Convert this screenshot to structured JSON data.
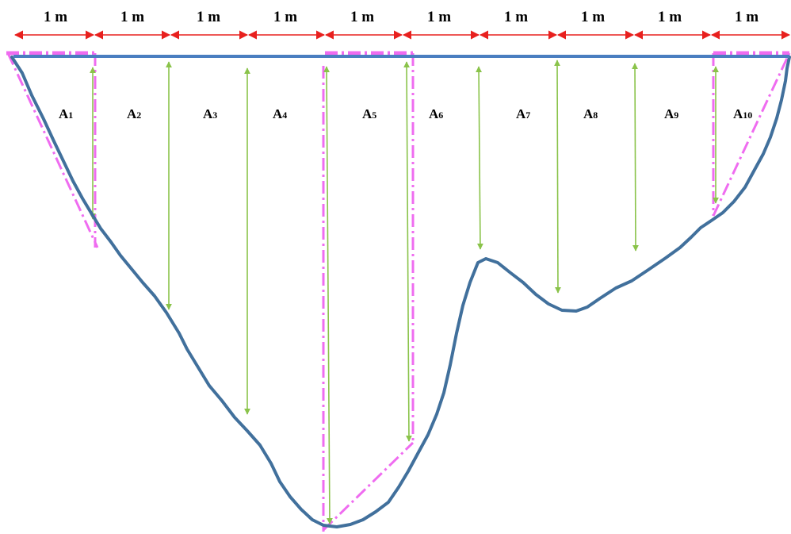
{
  "colors": {
    "profile": "#41709c",
    "waterline": "#4a7ec0",
    "dimension": "#e8201e",
    "depth": "#8ac34a",
    "approximation": "#ef6cf0"
  },
  "segments": [
    "1 m",
    "1 m",
    "1 m",
    "1 m",
    "1 m",
    "1 m",
    "1 m",
    "1 m",
    "1 m",
    "1 m"
  ],
  "areas": [
    {
      "letter": "A",
      "index": "1"
    },
    {
      "letter": "A",
      "index": "2"
    },
    {
      "letter": "A",
      "index": "3"
    },
    {
      "letter": "A",
      "index": "4"
    },
    {
      "letter": "A",
      "index": "5"
    },
    {
      "letter": "A",
      "index": "6"
    },
    {
      "letter": "A",
      "index": "7"
    },
    {
      "letter": "A",
      "index": "8"
    },
    {
      "letter": "A",
      "index": "9"
    },
    {
      "letter": "A",
      "index": "10"
    }
  ]
}
